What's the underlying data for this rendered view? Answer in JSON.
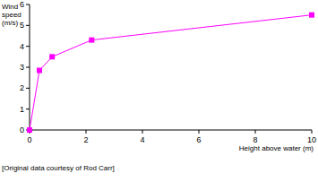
{
  "chart_data": {
    "type": "line",
    "x_label": "Height above water (m)",
    "y_label": "Wind speed (m/s)",
    "annotations": [
      "[Original data courtesy of Rod Carr]"
    ],
    "x": [
      0,
      0.35,
      0.8,
      2.2,
      10
    ],
    "series": [
      {
        "name": "Wind speed",
        "color": "#ff00ff",
        "marker": "square",
        "line_style": "solid",
        "values": [
          0,
          2.85,
          3.5,
          4.3,
          5.5
        ]
      }
    ],
    "xlim": [
      0,
      10
    ],
    "xticks": [
      0,
      2,
      4,
      6,
      8,
      10
    ],
    "ylim": [
      0,
      6
    ],
    "yticks": [
      0,
      1,
      2,
      3,
      4,
      5,
      6
    ],
    "grid": false
  }
}
